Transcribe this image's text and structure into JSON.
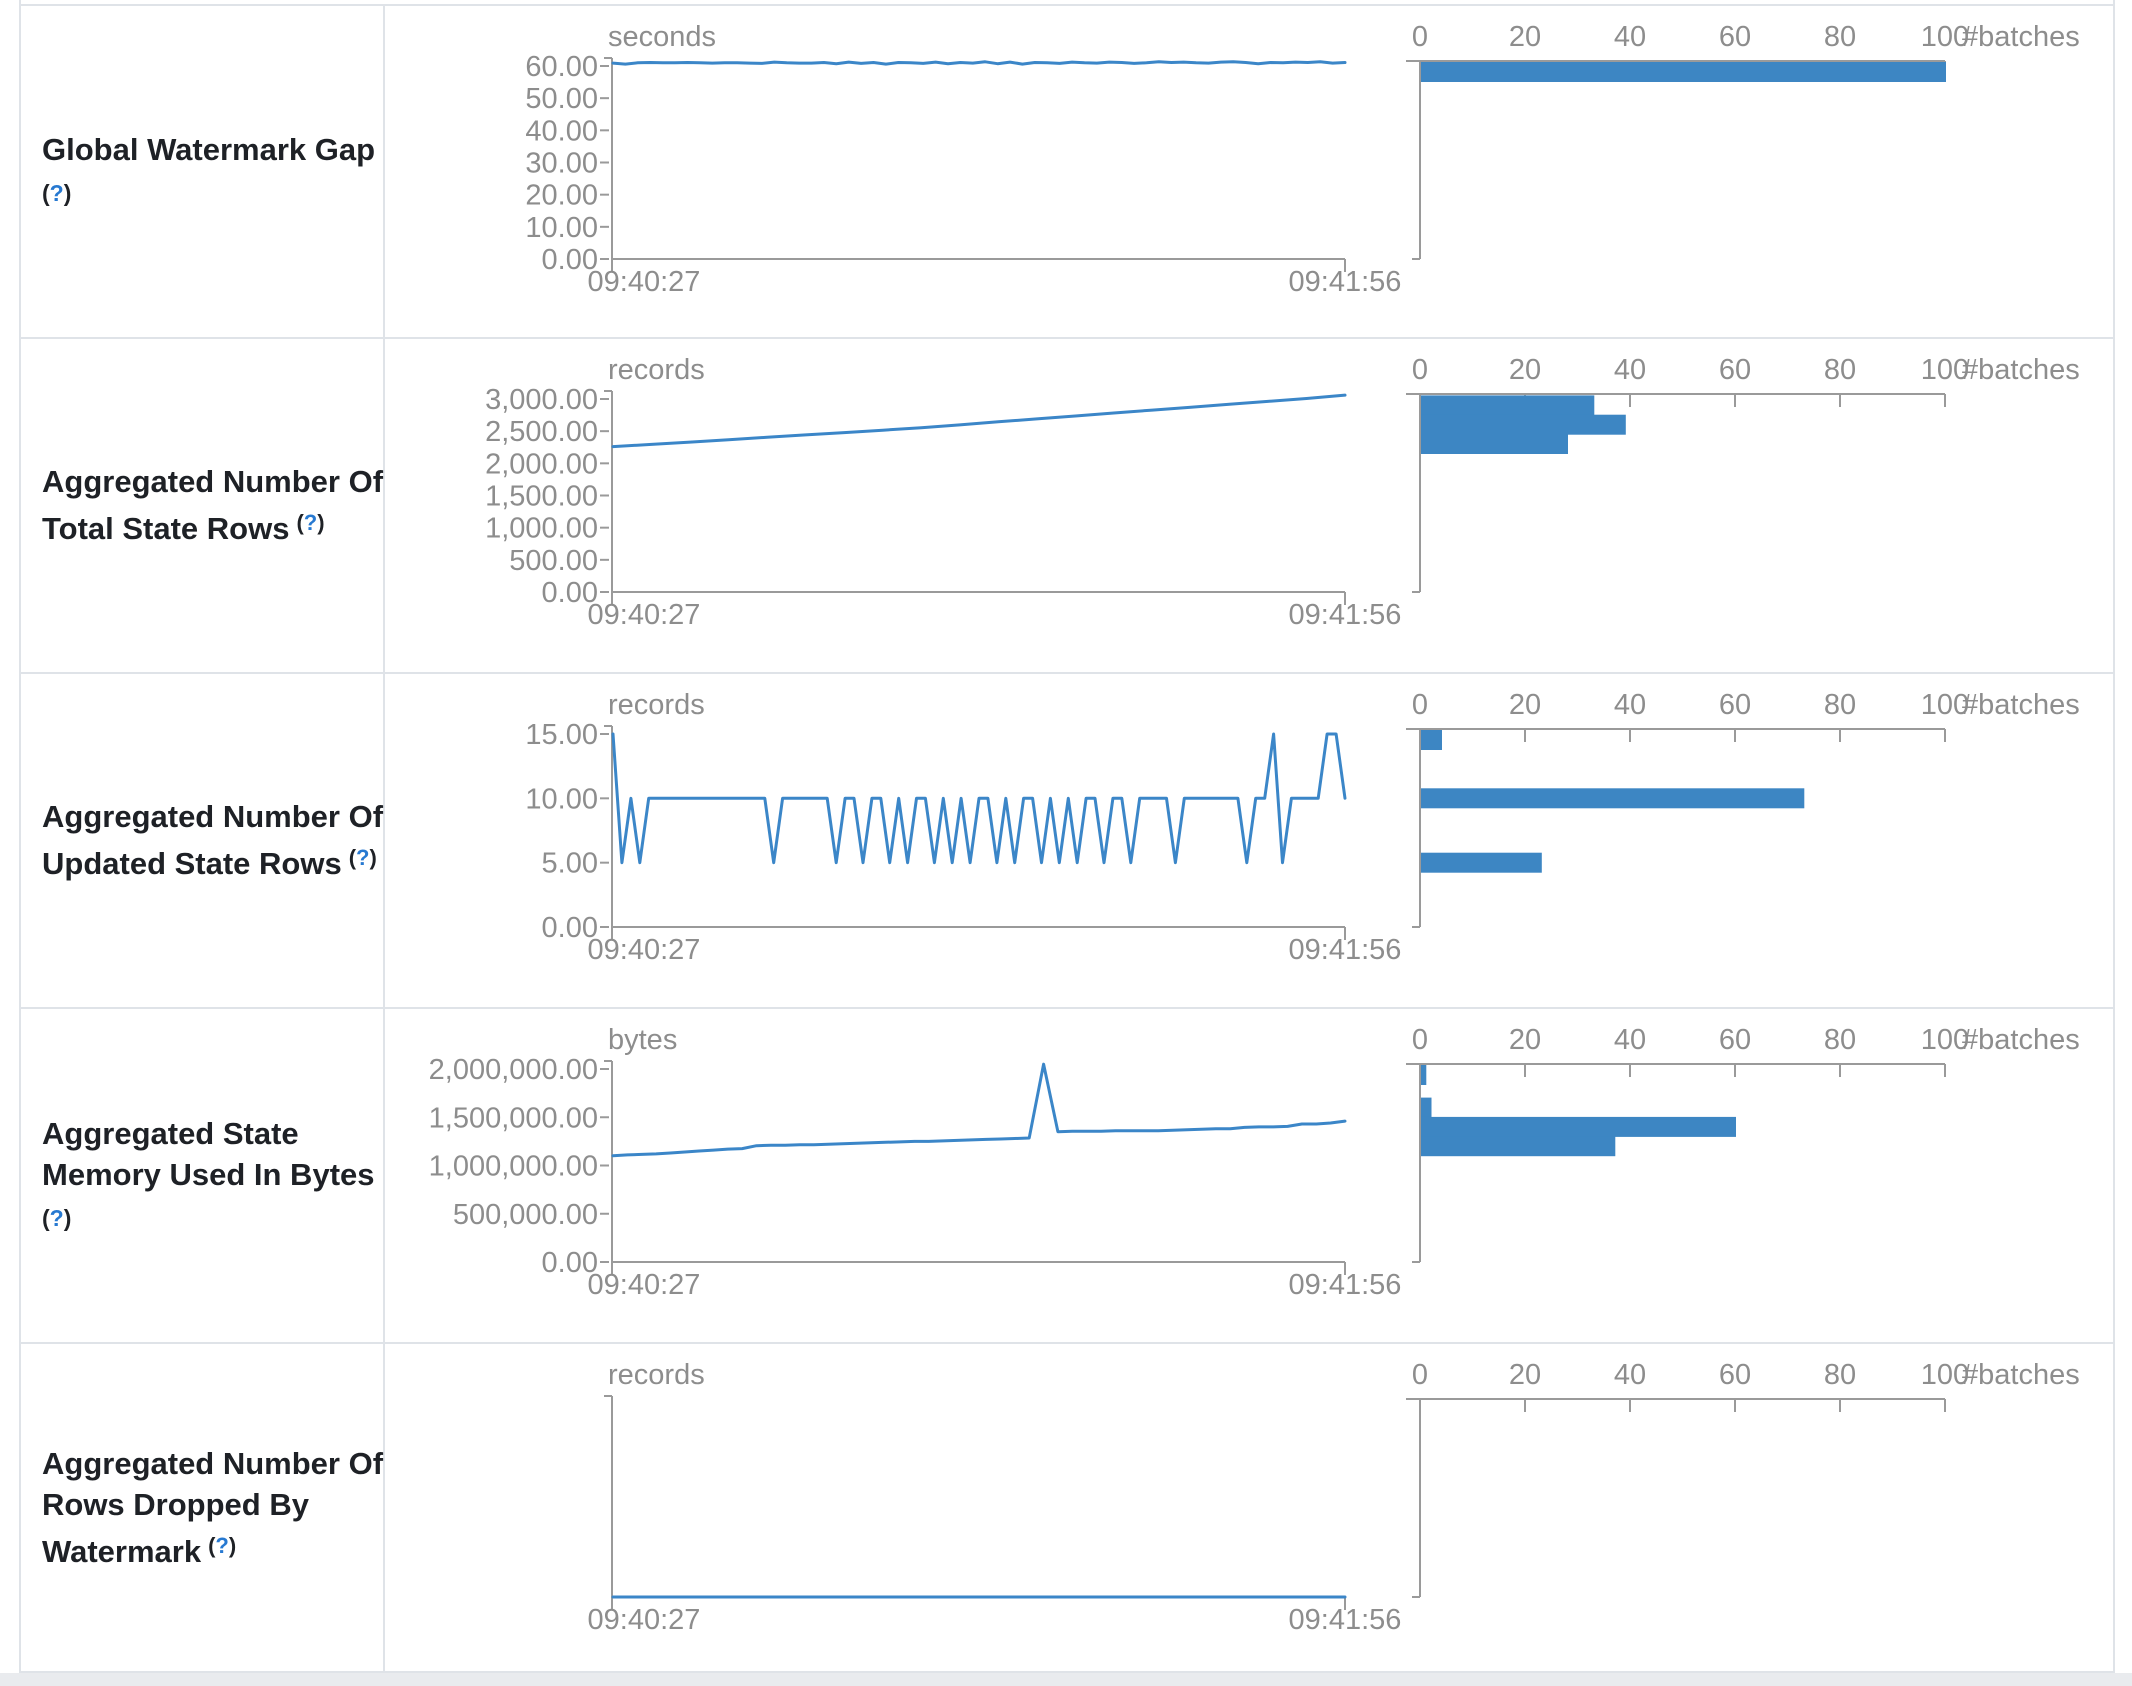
{
  "colors": {
    "series_blue": "#3b86c8",
    "bar_blue": "#3d86c3",
    "help_blue": "#2779d1"
  },
  "help": {
    "open_paren": "(",
    "question_mark": "?",
    "close_paren": ")"
  },
  "chart_data": {
    "note": "see rows[] — each row has a line timeline and a #batches histogram"
  },
  "rows": [
    {
      "id": "global-watermark-gap",
      "label_lines": [
        {
          "text": "Global Watermark Gap",
          "help": false
        },
        {
          "text": "",
          "help": true
        }
      ],
      "timeline": {
        "type": "line",
        "unit": "seconds",
        "x_start": "09:40:27",
        "x_end": "09:41:56",
        "y_ticks": [
          "60.00",
          "50.00",
          "40.00",
          "30.00",
          "20.00",
          "10.00",
          "0.00"
        ],
        "y_max": 60,
        "values": [
          60.9,
          60.6,
          61,
          61.1,
          61,
          61,
          61.1,
          61,
          60.9,
          61,
          61,
          60.9,
          60.8,
          61.2,
          61,
          60.9,
          60.9,
          61.1,
          60.7,
          61.2,
          60.8,
          61.1,
          60.6,
          61.1,
          61,
          60.8,
          61.2,
          60.7,
          61.1,
          60.9,
          61.3,
          60.7,
          61.2,
          60.6,
          61.1,
          61,
          60.8,
          61.2,
          61,
          60.9,
          61.2,
          61.1,
          60.8,
          61,
          61.3,
          61.1,
          61.2,
          61,
          60.9,
          61.2,
          61.3,
          61.1,
          60.7,
          61.1,
          61,
          61.2,
          61.1,
          61.3,
          60.9,
          61.1
        ]
      },
      "histogram": {
        "type": "bar",
        "axis_label": "#batches",
        "ticks": [
          "0",
          "20",
          "40",
          "60",
          "80",
          "100"
        ],
        "max": 100,
        "bars": [
          {
            "value": 60,
            "count": 100
          }
        ]
      }
    },
    {
      "id": "aggregated-number-of-total-state-rows",
      "label_lines": [
        {
          "text": "Aggregated Number Of",
          "help": false
        },
        {
          "text": "Total State Rows",
          "help": true
        }
      ],
      "timeline": {
        "type": "line",
        "unit": "records",
        "x_start": "09:40:27",
        "x_end": "09:41:56",
        "y_ticks": [
          "3,000.00",
          "2,500.00",
          "2,000.00",
          "1,500.00",
          "1,000.00",
          "500.00",
          "0.00"
        ],
        "y_max": 3000,
        "values": [
          2260,
          2295,
          2330,
          2368,
          2405,
          2442,
          2478,
          2515,
          2552,
          2598,
          2645,
          2690,
          2735,
          2782,
          2828,
          2872,
          2918,
          2962,
          3008,
          3060
        ]
      },
      "histogram": {
        "type": "bar",
        "axis_label": "#batches",
        "ticks": [
          "0",
          "20",
          "40",
          "60",
          "80",
          "100"
        ],
        "max": 100,
        "bars": [
          {
            "value": 2900,
            "count": 33
          },
          {
            "value": 2600,
            "count": 39
          },
          {
            "value": 2300,
            "count": 28
          }
        ]
      }
    },
    {
      "id": "aggregated-number-of-updated-state-rows",
      "label_lines": [
        {
          "text": "Aggregated Number Of",
          "help": false
        },
        {
          "text": "Updated State Rows",
          "help": true
        }
      ],
      "timeline": {
        "type": "line",
        "unit": "records",
        "x_start": "09:40:27",
        "x_end": "09:41:56",
        "y_ticks": [
          "15.00",
          "10.00",
          "5.00",
          "0.00"
        ],
        "y_max": 15,
        "values": [
          15,
          5,
          10,
          5,
          10,
          10,
          10,
          10,
          10,
          10,
          10,
          10,
          10,
          10,
          10,
          10,
          10,
          10,
          5,
          10,
          10,
          10,
          10,
          10,
          10,
          5,
          10,
          10,
          5,
          10,
          10,
          5,
          10,
          5,
          10,
          10,
          5,
          10,
          5,
          10,
          5,
          10,
          10,
          5,
          10,
          5,
          10,
          10,
          5,
          10,
          5,
          10,
          5,
          10,
          10,
          5,
          10,
          10,
          5,
          10,
          10,
          10,
          10,
          5,
          10,
          10,
          10,
          10,
          10,
          10,
          10,
          5,
          10,
          10,
          15,
          5,
          10,
          10,
          10,
          10,
          15,
          15,
          10
        ]
      },
      "histogram": {
        "type": "bar",
        "axis_label": "#batches",
        "ticks": [
          "0",
          "20",
          "40",
          "60",
          "80",
          "100"
        ],
        "max": 100,
        "bars": [
          {
            "value": 15,
            "count": 4
          },
          {
            "value": 10,
            "count": 73
          },
          {
            "value": 5,
            "count": 23
          }
        ]
      }
    },
    {
      "id": "aggregated-state-memory-used-in-bytes",
      "label_lines": [
        {
          "text": "Aggregated State",
          "help": false
        },
        {
          "text": "Memory Used In Bytes",
          "help": false
        },
        {
          "text": "",
          "help": true
        }
      ],
      "timeline": {
        "type": "line",
        "unit": "bytes",
        "x_start": "09:40:27",
        "x_end": "09:41:56",
        "y_ticks": [
          "2,000,000.00",
          "1,500,000.00",
          "1,000,000.00",
          "500,000.00",
          "0.00"
        ],
        "y_max": 2000000,
        "values": [
          1100000,
          1110000,
          1115000,
          1120000,
          1130000,
          1140000,
          1150000,
          1160000,
          1170000,
          1175000,
          1205000,
          1210000,
          1210000,
          1215000,
          1215000,
          1220000,
          1225000,
          1230000,
          1235000,
          1240000,
          1245000,
          1250000,
          1250000,
          1255000,
          1260000,
          1265000,
          1270000,
          1275000,
          1280000,
          1285000,
          2050000,
          1350000,
          1355000,
          1355000,
          1355000,
          1360000,
          1360000,
          1360000,
          1360000,
          1365000,
          1370000,
          1375000,
          1380000,
          1380000,
          1395000,
          1400000,
          1400000,
          1405000,
          1430000,
          1430000,
          1440000,
          1460000
        ]
      },
      "histogram": {
        "type": "bar",
        "axis_label": "#batches",
        "ticks": [
          "0",
          "20",
          "40",
          "60",
          "80",
          "100"
        ],
        "max": 100,
        "bars": [
          {
            "value": 2000000,
            "count": 1
          },
          {
            "value": 1600000,
            "count": 2
          },
          {
            "value": 1400000,
            "count": 60
          },
          {
            "value": 1200000,
            "count": 37
          }
        ]
      }
    },
    {
      "id": "aggregated-number-of-rows-dropped-by-watermark",
      "label_lines": [
        {
          "text": "Aggregated Number Of",
          "help": false
        },
        {
          "text": "Rows Dropped By",
          "help": false
        },
        {
          "text": "Watermark",
          "help": true
        }
      ],
      "timeline": {
        "type": "line",
        "unit": "records",
        "x_start": "09:40:27",
        "x_end": "09:41:56",
        "y_ticks": [],
        "y_max": 1,
        "values": [
          0,
          0,
          0,
          0,
          0,
          0,
          0,
          0,
          0,
          0
        ]
      },
      "histogram": {
        "type": "bar",
        "axis_label": "#batches",
        "ticks": [
          "0",
          "20",
          "40",
          "60",
          "80",
          "100"
        ],
        "max": 100,
        "bars": []
      }
    }
  ]
}
